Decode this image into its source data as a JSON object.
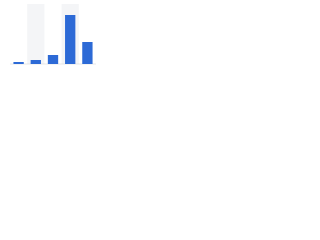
{
  "chart_data": {
    "type": "bar",
    "categories": [
      null,
      null,
      null,
      null,
      null
    ],
    "values": [
      2,
      4,
      9,
      49,
      22
    ],
    "color": "#2d6ad6",
    "ylim": [
      0,
      60
    ]
  }
}
